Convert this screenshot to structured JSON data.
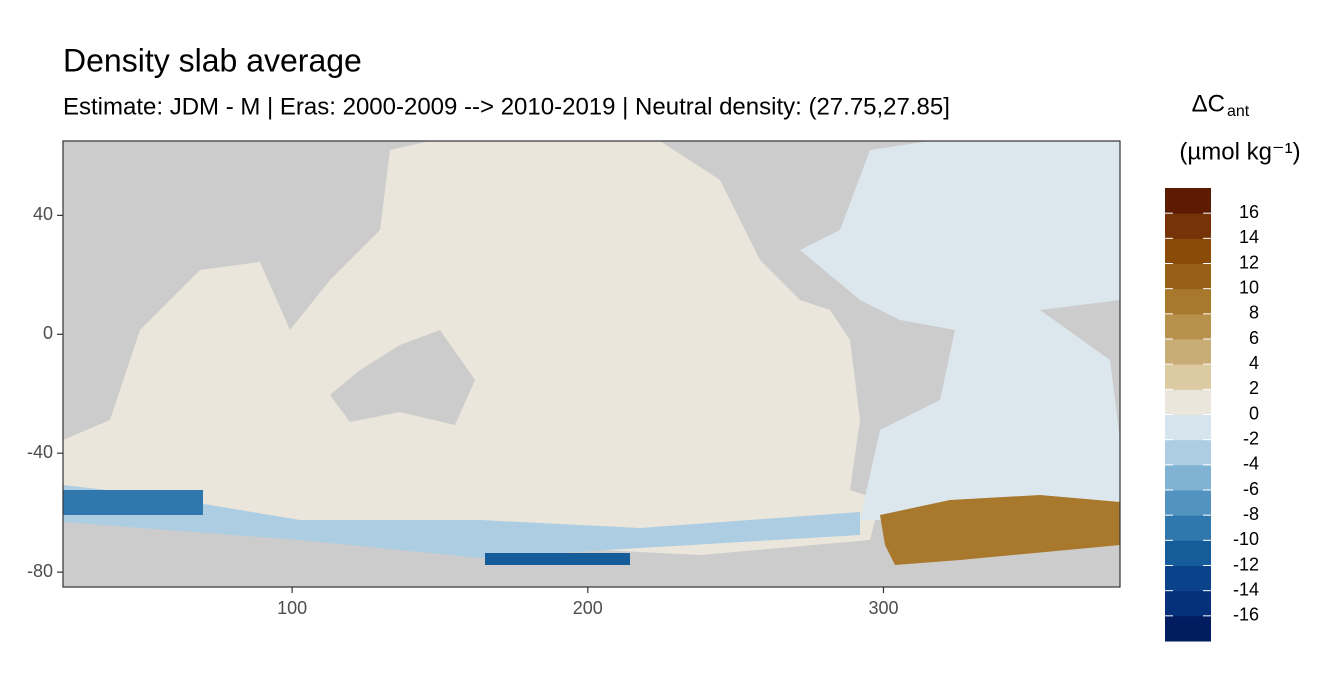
{
  "chart_data": {
    "type": "raster-map",
    "title": "Density slab average",
    "subtitle": "Estimate: JDM - M | Eras: 2000-2009 --> 2010-2019 | Neutral density: (27.75,27.85]",
    "xlim": [
      22.5,
      380
    ],
    "ylim": [
      -85,
      65
    ],
    "xticks": [
      100,
      200,
      300
    ],
    "yticks": [
      -80,
      -40,
      0,
      40
    ],
    "colorbar": {
      "title": "ΔC",
      "title_subscript": "ant",
      "units": "(µmol kg⁻¹)",
      "lim": [
        -18,
        18
      ],
      "ticks": [
        -16,
        -14,
        -12,
        -10,
        -8,
        -6,
        -4,
        -2,
        0,
        2,
        4,
        6,
        8,
        10,
        12,
        14,
        16
      ],
      "colors": [
        "#011c5f",
        "#06307a",
        "#0a4389",
        "#165c9a",
        "#2f77ad",
        "#5393c0",
        "#80b2d3",
        "#adcde2",
        "#d6e4ed",
        "#ebe6dc",
        "#dccaa3",
        "#c9ad76",
        "#b8914c",
        "#a8782c",
        "#986016",
        "#8b4b08",
        "#763307",
        "#5e1b04"
      ]
    }
  }
}
